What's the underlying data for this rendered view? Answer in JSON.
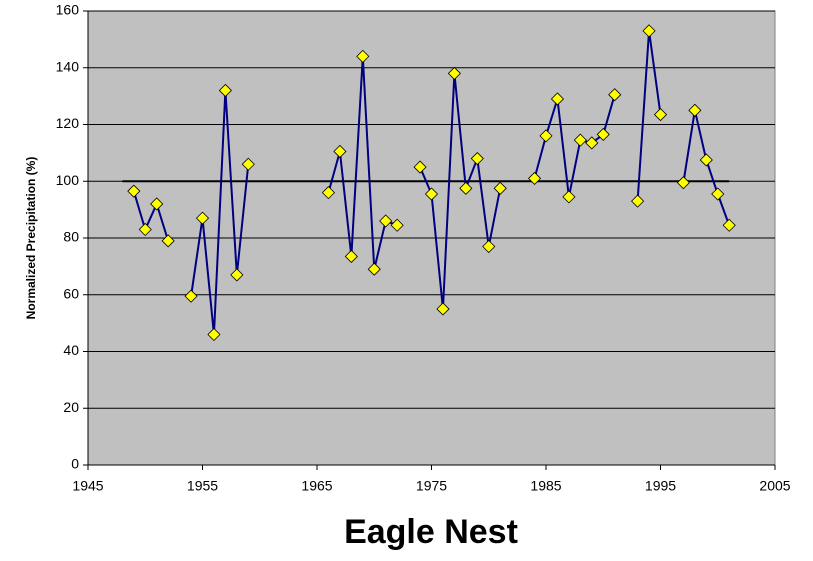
{
  "chart_data": {
    "type": "line",
    "title": "Eagle Nest",
    "y_label": "Normalized Precipitation (%)",
    "x": [
      1949,
      1950,
      1951,
      1952,
      1953,
      1954,
      1955,
      1956,
      1957,
      1958,
      1959,
      1960,
      1966,
      1967,
      1968,
      1969,
      1970,
      1971,
      1972,
      1973,
      1974,
      1975,
      1976,
      1977,
      1978,
      1979,
      1980,
      1981,
      1982,
      1984,
      1985,
      1986,
      1987,
      1988,
      1989,
      1990,
      1991,
      1992,
      1993,
      1994,
      1995,
      1996,
      1997,
      1998,
      1999,
      2000,
      2001
    ],
    "series": [
      {
        "color": "#000080",
        "marker_color": "#ffff00",
        "values": [
          96.5,
          83,
          92,
          79,
          null,
          59.5,
          87,
          46,
          132,
          67,
          106,
          null,
          96,
          110.5,
          73.5,
          144,
          69,
          86,
          84.5,
          null,
          105,
          95.5,
          55,
          138,
          97.5,
          108,
          77,
          97.5,
          null,
          101,
          116,
          129,
          94.5,
          114.5,
          113.5,
          116.5,
          130.5,
          null,
          93,
          153,
          123.5,
          null,
          99.5,
          125,
          107.5,
          95.5,
          84.5
        ]
      }
    ],
    "reference_line": {
      "value": 100,
      "x": [
        1948,
        2001
      ],
      "color": "#000000"
    },
    "xlim": [
      1945,
      2005
    ],
    "xticks": [
      1945,
      1955,
      1965,
      1975,
      1985,
      1995,
      2005
    ],
    "ylim": [
      0,
      160
    ],
    "yticks": [
      0,
      20,
      40,
      60,
      80,
      100,
      120,
      140,
      160
    ],
    "grid": true,
    "plot_background": "#c0c0c0"
  }
}
